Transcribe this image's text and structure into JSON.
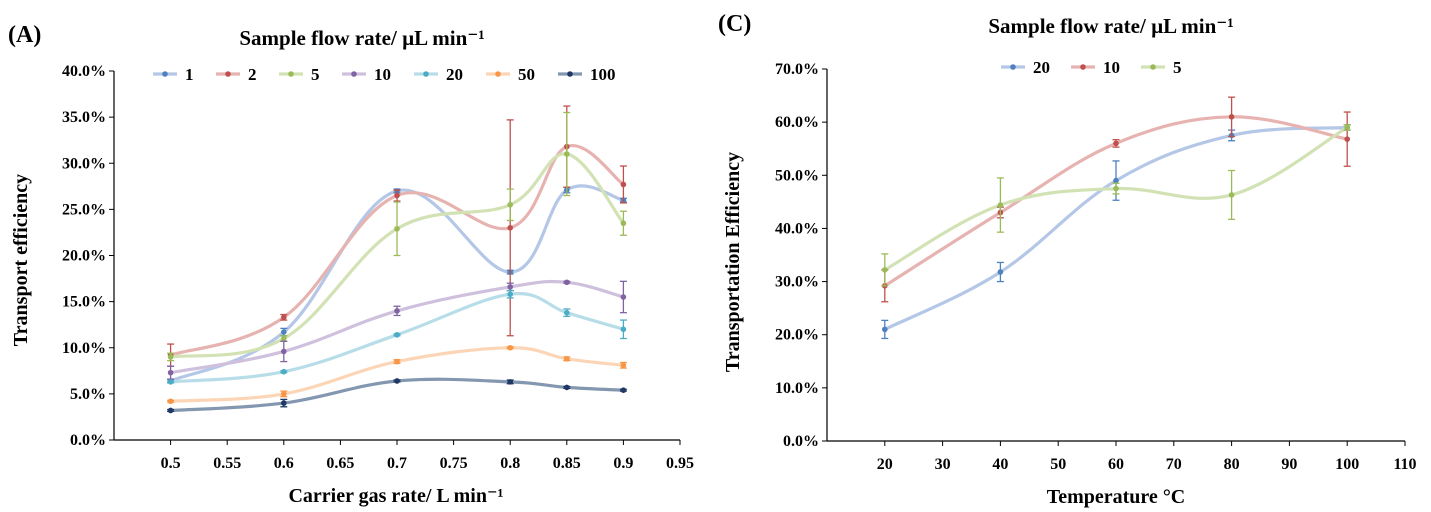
{
  "chart_data": [
    {
      "panel": "(A)",
      "type": "line",
      "title": "Sample flow rate/ µL min⁻¹",
      "xlabel": "Carrier gas rate/ L min⁻¹",
      "ylabel": "Transport efficiency",
      "xlim": [
        0.45,
        0.95
      ],
      "ylim": [
        0,
        0.4
      ],
      "x_tick_labels": [
        "0.5",
        "0.55",
        "0.6",
        "0.65",
        "0.7",
        "0.75",
        "0.8",
        "0.85",
        "0.9",
        "0.95"
      ],
      "y_tick_labels": [
        "0.0%",
        "5.0%",
        "10.0%",
        "15.0%",
        "20.0%",
        "25.0%",
        "30.0%",
        "35.0%",
        "40.0%"
      ],
      "x": [
        0.5,
        0.6,
        0.7,
        0.8,
        0.85,
        0.9
      ],
      "series": [
        {
          "name": "1",
          "color": "#4f81bd",
          "line": "#b4c7e7",
          "values": [
            0.064,
            0.117,
            0.27,
            0.182,
            0.271,
            0.26
          ],
          "errors": [
            0.002,
            0.004,
            0.002,
            0.002,
            0.003,
            0.002
          ]
        },
        {
          "name": "2",
          "color": "#c0504d",
          "line": "#e6b3b1",
          "values": [
            0.092,
            0.133,
            0.265,
            0.23,
            0.318,
            0.277
          ],
          "errors": [
            0.012,
            0.003,
            0.006,
            0.117,
            0.044,
            0.02
          ]
        },
        {
          "name": "5",
          "color": "#9bbb59",
          "line": "#d2e2b4",
          "values": [
            0.09,
            0.11,
            0.229,
            0.255,
            0.31,
            0.235
          ],
          "errors": [
            0.004,
            0.003,
            0.029,
            0.017,
            0.045,
            0.013
          ]
        },
        {
          "name": "10",
          "color": "#8064a2",
          "line": "#cfc0dd",
          "values": [
            0.073,
            0.096,
            0.14,
            0.166,
            0.171,
            0.155
          ],
          "errors": [
            0.007,
            0.011,
            0.005,
            0.004,
            0.001,
            0.017
          ]
        },
        {
          "name": "20",
          "color": "#4bacc6",
          "line": "#b7dde8",
          "values": [
            0.063,
            0.074,
            0.114,
            0.158,
            0.138,
            0.12
          ],
          "errors": [
            0.001,
            0.001,
            0.001,
            0.004,
            0.004,
            0.01
          ]
        },
        {
          "name": "50",
          "color": "#f79646",
          "line": "#fbd5b5",
          "values": [
            0.042,
            0.05,
            0.085,
            0.1,
            0.088,
            0.081
          ],
          "errors": [
            0.001,
            0.003,
            0.002,
            0.001,
            0.002,
            0.003
          ]
        },
        {
          "name": "100",
          "color": "#1f3864",
          "line": "#8497b0",
          "values": [
            0.032,
            0.04,
            0.064,
            0.063,
            0.057,
            0.054
          ],
          "errors": [
            0.001,
            0.004,
            0.001,
            0.002,
            0.001,
            0.001
          ]
        }
      ],
      "legend": "top"
    },
    {
      "panel": "(C)",
      "type": "line",
      "title": "Sample flow rate/ µL min⁻¹",
      "xlabel": "Temperature °C",
      "ylabel": "Transportation Efficiency",
      "xlim": [
        10,
        110
      ],
      "ylim": [
        0,
        0.7
      ],
      "x_tick_labels": [
        "20",
        "30",
        "40",
        "50",
        "60",
        "70",
        "80",
        "90",
        "100",
        "110"
      ],
      "y_tick_labels": [
        "0.0%",
        "10.0%",
        "20.0%",
        "30.0%",
        "40.0%",
        "50.0%",
        "60.0%",
        "70.0%"
      ],
      "x": [
        20,
        40,
        60,
        80,
        100
      ],
      "series": [
        {
          "name": "20",
          "color": "#4f81bd",
          "line": "#b4c7e7",
          "values": [
            0.21,
            0.318,
            0.49,
            0.575,
            0.59
          ],
          "errors": [
            0.017,
            0.018,
            0.037,
            0.01,
            0.005
          ]
        },
        {
          "name": "10",
          "color": "#c0504d",
          "line": "#e6b3b1",
          "values": [
            0.292,
            0.43,
            0.56,
            0.61,
            0.568
          ],
          "errors": [
            0.03,
            0.01,
            0.007,
            0.037,
            0.051
          ]
        },
        {
          "name": "5",
          "color": "#9bbb59",
          "line": "#d2e2b4",
          "values": [
            0.322,
            0.444,
            0.475,
            0.463,
            0.59
          ],
          "errors": [
            0.03,
            0.051,
            0.01,
            0.046,
            0.005
          ]
        }
      ],
      "legend": "top"
    }
  ]
}
